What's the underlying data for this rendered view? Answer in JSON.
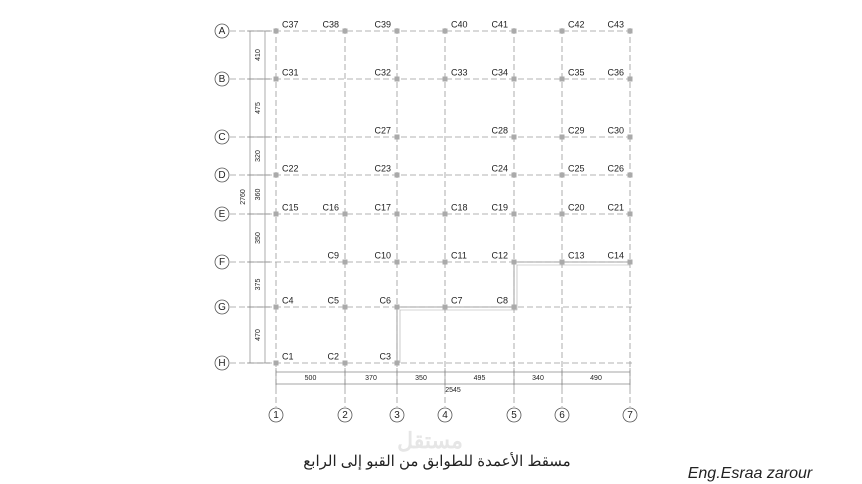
{
  "drawing": {
    "grid_rows": [
      "A",
      "B",
      "C",
      "D",
      "E",
      "F",
      "G",
      "H"
    ],
    "grid_columns": [
      "1",
      "2",
      "3",
      "4",
      "5",
      "6",
      "7"
    ],
    "column_rows": [
      [
        "C37",
        "C38",
        "C39",
        "C40",
        "C41",
        "C42",
        "C43"
      ],
      [
        "C31",
        "C32",
        "C33",
        "C34",
        "C35",
        "C36"
      ],
      [
        "C27",
        "C28",
        "C29",
        "C30"
      ],
      [
        "C22",
        "C23",
        "C24",
        "C25",
        "C26"
      ],
      [
        "C15",
        "C16",
        "C17",
        "C18",
        "C19",
        "C20",
        "C21"
      ],
      [
        "C9",
        "C10",
        "C11",
        "C12",
        "C13",
        "C14"
      ],
      [
        "C4",
        "C5",
        "C6",
        "C7",
        "C8"
      ],
      [
        "C1",
        "C2",
        "C3"
      ]
    ],
    "row_spacings": [
      410,
      475,
      320,
      360,
      350,
      375,
      470
    ],
    "row_total": 2760,
    "column_spacings": [
      500,
      370,
      350,
      495,
      340,
      490
    ],
    "column_total": 2545,
    "caption": "مسقط الأعمدة للطوابق من القبو إلى الرابع",
    "author": "Eng.Esraa zarour",
    "watermark": "مستقل"
  }
}
